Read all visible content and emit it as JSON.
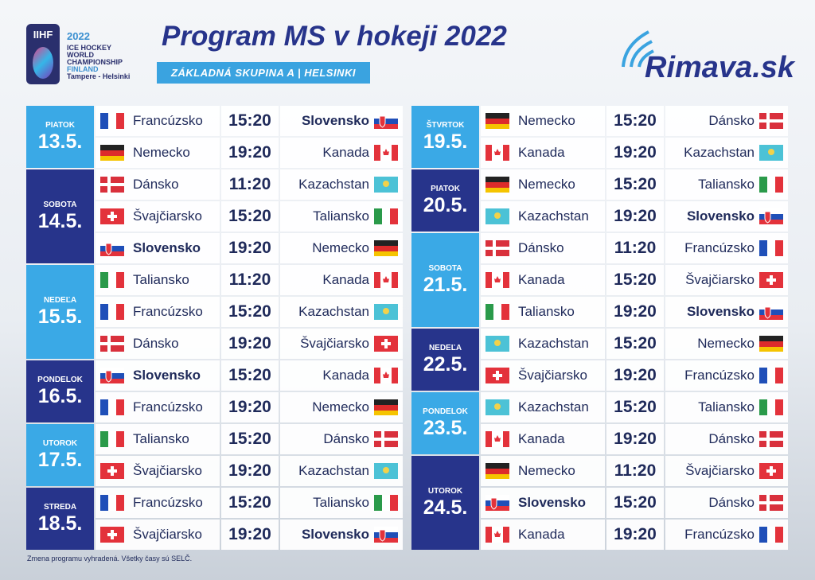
{
  "header": {
    "logo": {
      "brand": "IIHF",
      "year": "2022",
      "lines": [
        "ICE HOCKEY",
        "WORLD",
        "CHAMPIONSHIP",
        "FINLAND",
        "Tampere - Helsinki"
      ]
    },
    "title": "Program MS v hokeji 2022",
    "subtitle": "ZÁKLADNÁ SKUPINA A | HELSINKI",
    "site": "Rimava.sk"
  },
  "columns": [
    {
      "days": [
        {
          "weekday": "PIATOK",
          "date": "13.5.",
          "matches": [
            {
              "home": "Francúzsko",
              "time": "15:20",
              "away": "Slovensko"
            },
            {
              "home": "Nemecko",
              "time": "19:20",
              "away": "Kanada"
            }
          ]
        },
        {
          "weekday": "SOBOTA",
          "date": "14.5.",
          "matches": [
            {
              "home": "Dánsko",
              "time": "11:20",
              "away": "Kazachstan"
            },
            {
              "home": "Švajčiarsko",
              "time": "15:20",
              "away": "Taliansko"
            },
            {
              "home": "Slovensko",
              "time": "19:20",
              "away": "Nemecko"
            }
          ]
        },
        {
          "weekday": "NEDEĽA",
          "date": "15.5.",
          "matches": [
            {
              "home": "Taliansko",
              "time": "11:20",
              "away": "Kanada"
            },
            {
              "home": "Francúzsko",
              "time": "15:20",
              "away": "Kazachstan"
            },
            {
              "home": "Dánsko",
              "time": "19:20",
              "away": "Švajčiarsko"
            }
          ]
        },
        {
          "weekday": "PONDELOK",
          "date": "16.5.",
          "matches": [
            {
              "home": "Slovensko",
              "time": "15:20",
              "away": "Kanada"
            },
            {
              "home": "Francúzsko",
              "time": "19:20",
              "away": "Nemecko"
            }
          ]
        },
        {
          "weekday": "UTOROK",
          "date": "17.5.",
          "matches": [
            {
              "home": "Taliansko",
              "time": "15:20",
              "away": "Dánsko"
            },
            {
              "home": "Švajčiarsko",
              "time": "19:20",
              "away": "Kazachstan"
            }
          ]
        },
        {
          "weekday": "STREDA",
          "date": "18.5.",
          "matches": [
            {
              "home": "Francúzsko",
              "time": "15:20",
              "away": "Taliansko"
            },
            {
              "home": "Švajčiarsko",
              "time": "19:20",
              "away": "Slovensko"
            }
          ]
        }
      ]
    },
    {
      "days": [
        {
          "weekday": "ŠTVRTOK",
          "date": "19.5.",
          "matches": [
            {
              "home": "Nemecko",
              "time": "15:20",
              "away": "Dánsko"
            },
            {
              "home": "Kanada",
              "time": "19:20",
              "away": "Kazachstan"
            }
          ]
        },
        {
          "weekday": "PIATOK",
          "date": "20.5.",
          "matches": [
            {
              "home": "Nemecko",
              "time": "15:20",
              "away": "Taliansko"
            },
            {
              "home": "Kazachstan",
              "time": "19:20",
              "away": "Slovensko"
            }
          ]
        },
        {
          "weekday": "SOBOTA",
          "date": "21.5.",
          "matches": [
            {
              "home": "Dánsko",
              "time": "11:20",
              "away": "Francúzsko"
            },
            {
              "home": "Kanada",
              "time": "15:20",
              "away": "Švajčiarsko"
            },
            {
              "home": "Taliansko",
              "time": "19:20",
              "away": "Slovensko"
            }
          ]
        },
        {
          "weekday": "NEDEĽA",
          "date": "22.5.",
          "matches": [
            {
              "home": "Kazachstan",
              "time": "15:20",
              "away": "Nemecko"
            },
            {
              "home": "Švajčiarsko",
              "time": "19:20",
              "away": "Francúzsko"
            }
          ]
        },
        {
          "weekday": "PONDELOK",
          "date": "23.5.",
          "matches": [
            {
              "home": "Kazachstan",
              "time": "15:20",
              "away": "Taliansko"
            },
            {
              "home": "Kanada",
              "time": "19:20",
              "away": "Dánsko"
            }
          ]
        },
        {
          "weekday": "UTOROK",
          "date": "24.5.",
          "matches": [
            {
              "home": "Nemecko",
              "time": "11:20",
              "away": "Švajčiarsko"
            },
            {
              "home": "Slovensko",
              "time": "15:20",
              "away": "Dánsko"
            },
            {
              "home": "Kanada",
              "time": "19:20",
              "away": "Francúzsko"
            }
          ]
        }
      ]
    }
  ],
  "footer": "Zmena programu vyhradená. Všetky časy sú SELČ."
}
